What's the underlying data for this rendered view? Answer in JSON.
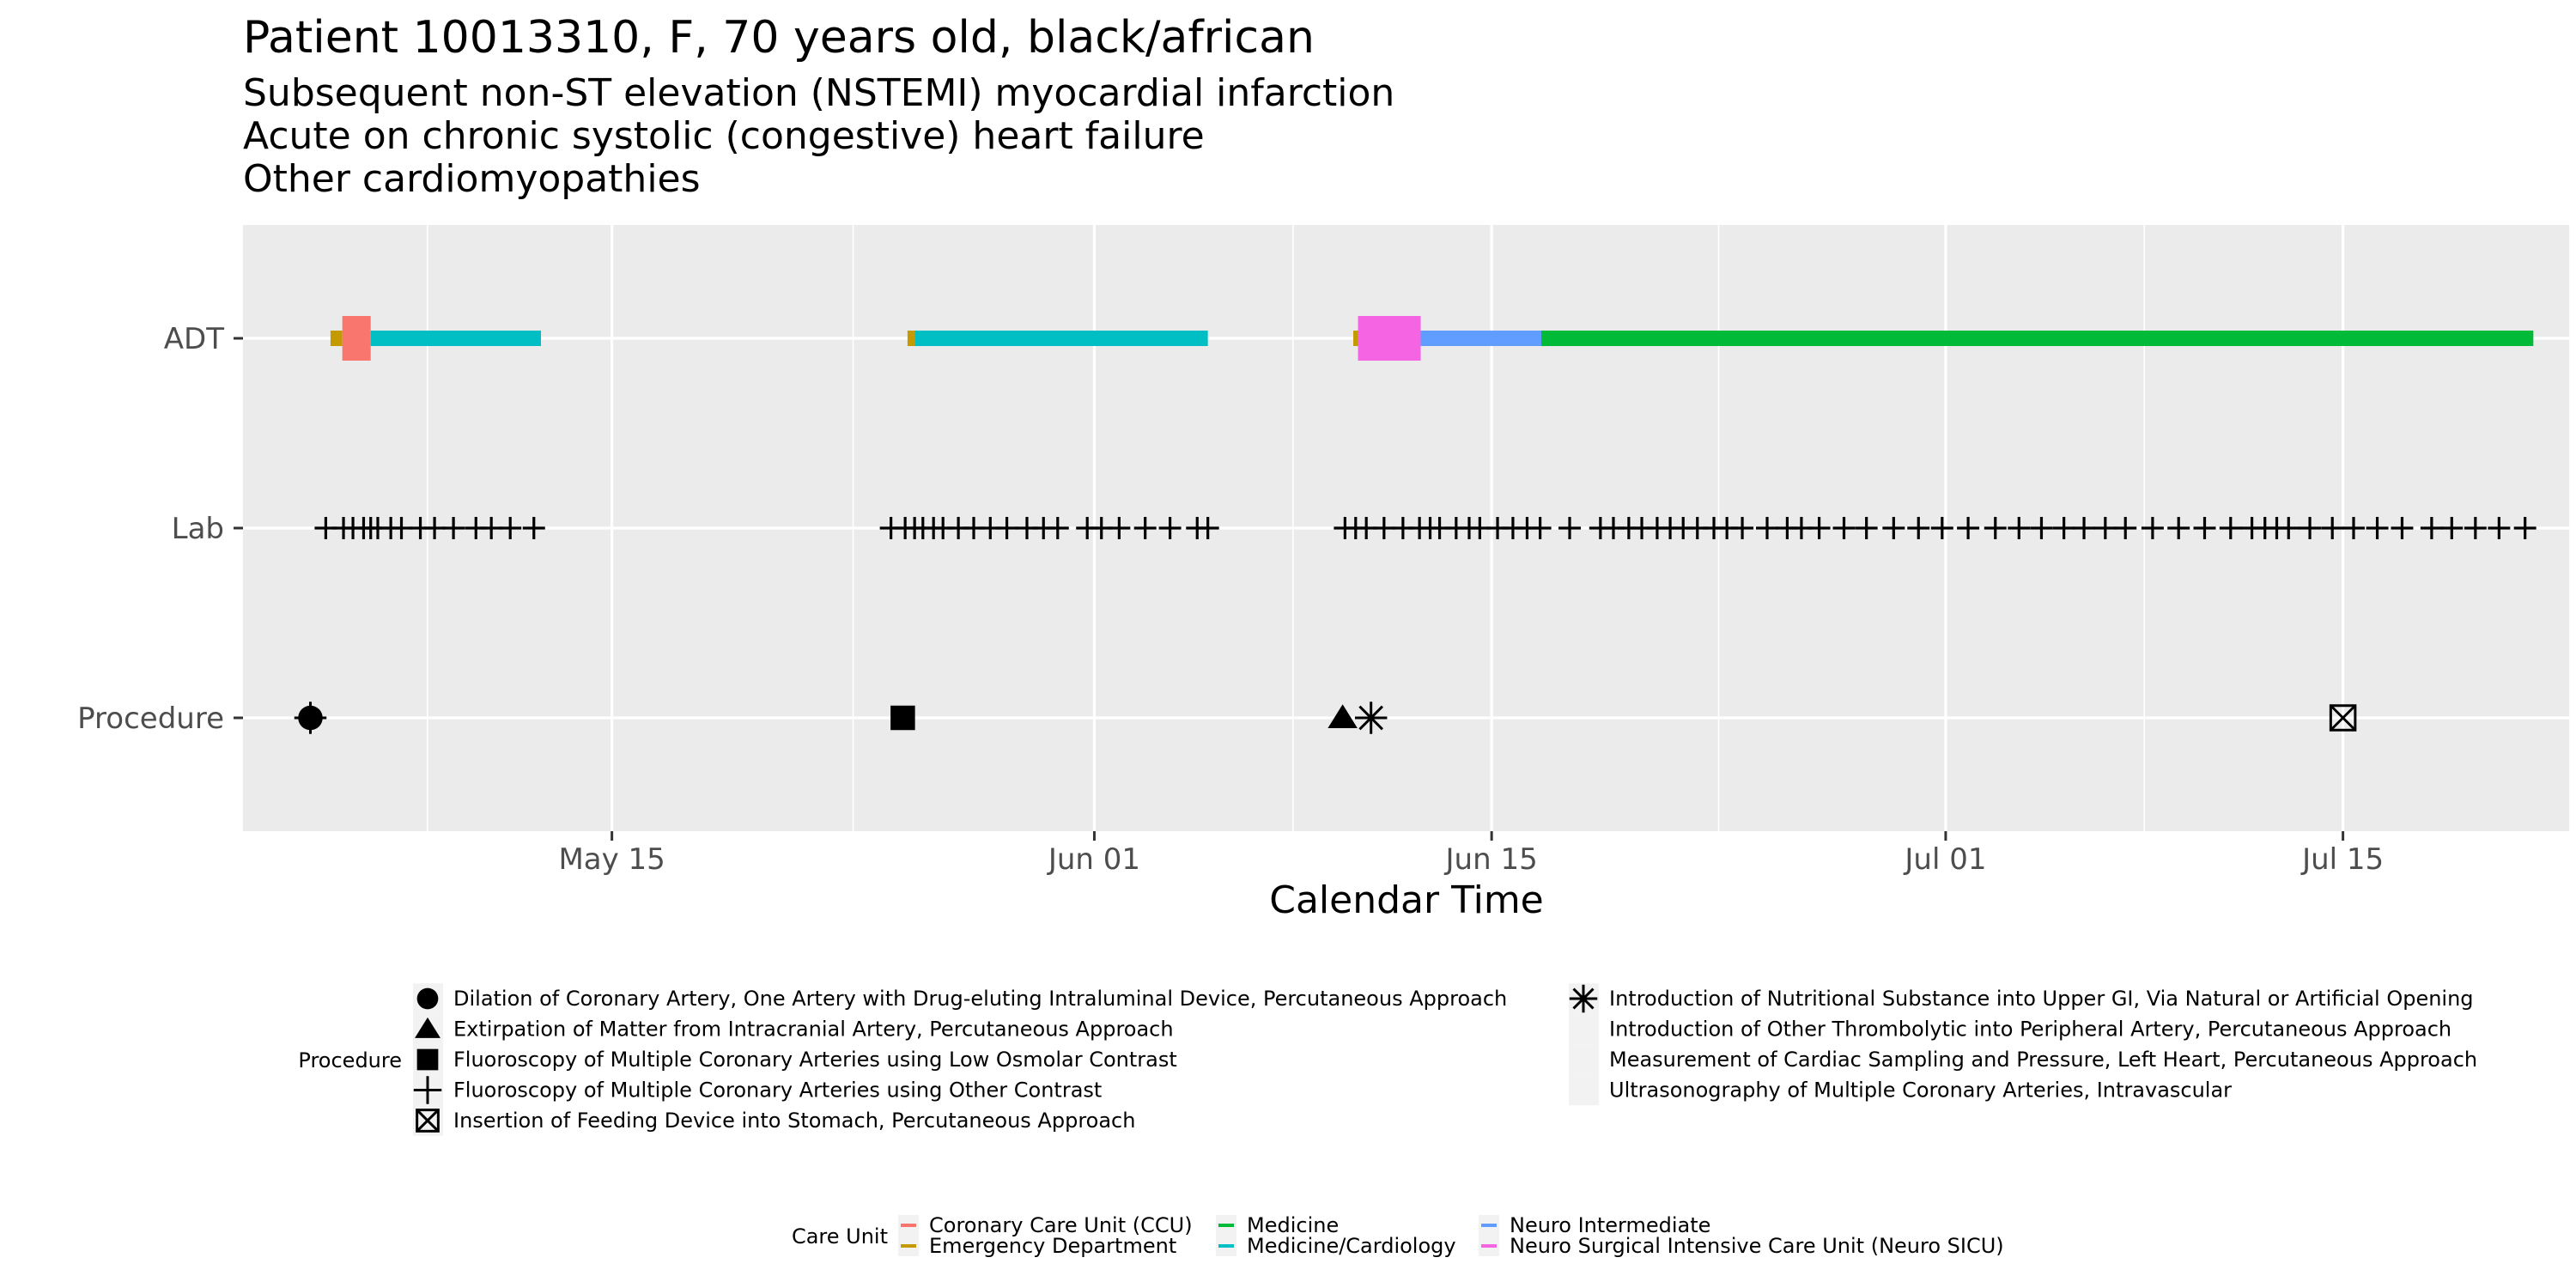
{
  "header": {
    "title": "Patient 10013310, F, 70 years old, black/african",
    "subtitles": [
      "Subsequent non-ST elevation (NSTEMI) myocardial infarction",
      "Acute on chronic systolic (congestive) heart failure",
      "Other cardiomyopathies"
    ]
  },
  "chart_data": {
    "type": "timeline",
    "title": "Patient 10013310, F, 70 years old, black/african",
    "xlabel": "Calendar Time",
    "ylabel": "",
    "x_ticks": [
      "May 15",
      "Jun 01",
      "Jun 15",
      "Jul 01",
      "Jul 15"
    ],
    "x_tick_dates": [
      "2000-05-15",
      "2000-06-01",
      "2000-06-15",
      "2000-07-01",
      "2000-07-15"
    ],
    "xlim": [
      "2000-05-02",
      "2000-07-23"
    ],
    "rows": [
      "ADT",
      "Lab",
      "Procedure"
    ],
    "grid": true,
    "adt_segments": [
      {
        "unit": "Emergency Department",
        "start": "2000-05-05 02:00",
        "end": "2000-05-05 12:00"
      },
      {
        "unit": "Coronary Care Unit (CCU)",
        "start": "2000-05-05 12:00",
        "end": "2000-05-06 12:00"
      },
      {
        "unit": "Medicine/Cardiology",
        "start": "2000-05-06 12:00",
        "end": "2000-05-12 12:00"
      },
      {
        "unit": "Emergency Department",
        "start": "2000-05-25 10:00",
        "end": "2000-05-25 16:00"
      },
      {
        "unit": "Medicine/Cardiology",
        "start": "2000-05-25 16:00",
        "end": "2000-06-05 00:00"
      },
      {
        "unit": "Emergency Department",
        "start": "2000-06-10 03:00",
        "end": "2000-06-10 07:00"
      },
      {
        "unit": "Neuro Surgical Intensive Care Unit (Neuro SICU)",
        "start": "2000-06-10 07:00",
        "end": "2000-06-12 12:00"
      },
      {
        "unit": "Neuro Intermediate",
        "start": "2000-06-12 12:00",
        "end": "2000-06-16 18:00"
      },
      {
        "unit": "Medicine",
        "start": "2000-06-16 18:00",
        "end": "2000-07-21 17:00"
      }
    ],
    "lab_times": [
      "2000-05-04 22:00",
      "2000-05-05 13:00",
      "2000-05-05 21:00",
      "2000-05-06 06:00",
      "2000-05-06 12:00",
      "2000-05-06 18:00",
      "2000-05-07 05:00",
      "2000-05-07 14:00",
      "2000-05-08 06:00",
      "2000-05-08 18:00",
      "2000-05-09 10:00",
      "2000-05-10 05:00",
      "2000-05-10 18:00",
      "2000-05-11 10:00",
      "2000-05-12 06:00",
      "2000-05-24 20:00",
      "2000-05-25 08:00",
      "2000-05-25 16:00",
      "2000-05-25 23:00",
      "2000-05-26 08:00",
      "2000-05-26 16:00",
      "2000-05-27 05:00",
      "2000-05-27 18:00",
      "2000-05-28 08:00",
      "2000-05-28 22:00",
      "2000-05-29 15:00",
      "2000-05-30 05:00",
      "2000-05-30 17:00",
      "2000-05-31 18:00",
      "2000-06-01 06:00",
      "2000-06-01 21:00",
      "2000-06-02 19:00",
      "2000-06-03 16:00",
      "2000-06-04 15:00",
      "2000-06-05 00:00",
      "2000-06-09 20:00",
      "2000-06-10 05:00",
      "2000-06-10 14:00",
      "2000-06-11 05:00",
      "2000-06-11 21:00",
      "2000-06-12 11:00",
      "2000-06-12 20:00",
      "2000-06-13 04:00",
      "2000-06-13 18:00",
      "2000-06-14 05:00",
      "2000-06-14 14:00",
      "2000-06-15 05:00",
      "2000-06-15 18:00",
      "2000-06-16 06:00",
      "2000-06-16 17:00",
      "2000-06-17 18:00",
      "2000-06-18 20:00",
      "2000-06-19 07:00",
      "2000-06-19 20:00",
      "2000-06-20 07:00",
      "2000-06-20 20:00",
      "2000-06-21 07:00",
      "2000-06-21 18:00",
      "2000-06-22 06:00",
      "2000-06-22 20:00",
      "2000-06-23 07:00",
      "2000-06-23 20:00",
      "2000-06-24 17:00",
      "2000-06-25 10:00",
      "2000-06-25 22:00",
      "2000-06-26 13:00",
      "2000-06-27 10:00",
      "2000-06-28 05:00",
      "2000-06-29 04:00",
      "2000-06-30 01:00",
      "2000-06-30 21:00",
      "2000-07-01 19:00",
      "2000-07-02 18:00",
      "2000-07-03 14:00",
      "2000-07-04 09:00",
      "2000-07-05 04:00",
      "2000-07-05 21:00",
      "2000-07-06 15:00",
      "2000-07-07 08:00",
      "2000-07-08 07:00",
      "2000-07-09 05:00",
      "2000-07-10 03:00",
      "2000-07-11 01:00",
      "2000-07-11 19:00",
      "2000-07-12 06:00",
      "2000-07-12 16:00",
      "2000-07-13 02:00",
      "2000-07-13 20:00",
      "2000-07-14 15:00",
      "2000-07-15 09:00",
      "2000-07-16 05:00",
      "2000-07-17 02:00",
      "2000-07-18 03:00",
      "2000-07-18 20:00",
      "2000-07-19 16:00",
      "2000-07-20 12:00",
      "2000-07-21 10:00"
    ],
    "procedures": [
      {
        "time": "2000-05-04 09:00",
        "name": "Dilation of Coronary Artery, One Artery with Drug-eluting Intraluminal Device, Percutaneous Approach"
      },
      {
        "time": "2000-05-04 09:00",
        "name": "Fluoroscopy of Multiple Coronary Arteries using Other Contrast"
      },
      {
        "time": "2000-05-25 06:00",
        "name": "Fluoroscopy of Multiple Coronary Arteries using Low Osmolar Contrast"
      },
      {
        "time": "2000-06-09 18:00",
        "name": "Extirpation of Matter from Intracranial Artery, Percutaneous Approach"
      },
      {
        "time": "2000-06-10 18:00",
        "name": "Introduction of Nutritional Substance into Upper GI, Via Natural or Artificial Opening"
      },
      {
        "time": "2000-07-15 00:00",
        "name": "Insertion of Feeding Device into Stomach, Percutaneous Approach"
      }
    ],
    "procedure_legend": {
      "title": "Procedure",
      "left_items": [
        {
          "shape": "circle",
          "label": "Dilation of Coronary Artery, One Artery with Drug-eluting Intraluminal Device, Percutaneous Approach"
        },
        {
          "shape": "triangle",
          "label": "Extirpation of Matter from Intracranial Artery, Percutaneous Approach"
        },
        {
          "shape": "square",
          "label": "Fluoroscopy of Multiple Coronary Arteries using Low Osmolar Contrast"
        },
        {
          "shape": "plus",
          "label": "Fluoroscopy of Multiple Coronary Arteries using Other Contrast"
        },
        {
          "shape": "boxx",
          "label": "Insertion of Feeding Device into Stomach, Percutaneous Approach"
        }
      ],
      "right_items": [
        {
          "shape": "asterisk",
          "label": "Introduction of Nutritional Substance into Upper GI, Via Natural or Artificial Opening"
        },
        {
          "shape": "none",
          "label": "Introduction of Other Thrombolytic into Peripheral Artery, Percutaneous Approach"
        },
        {
          "shape": "none",
          "label": "Measurement of Cardiac Sampling and Pressure, Left Heart, Percutaneous Approach"
        },
        {
          "shape": "none",
          "label": "Ultrasonography of Multiple Coronary Arteries, Intravascular"
        }
      ]
    },
    "care_unit_legend": {
      "title": "Care Unit",
      "items": [
        {
          "label": "Coronary Care Unit (CCU)",
          "color": "#F8766D"
        },
        {
          "label": "Emergency Department",
          "color": "#C49A00"
        },
        {
          "label": "Medicine",
          "color": "#00BA38"
        },
        {
          "label": "Medicine/Cardiology",
          "color": "#00BFC4"
        },
        {
          "label": "Neuro Intermediate",
          "color": "#619CFF"
        },
        {
          "label": "Neuro Surgical Intensive Care Unit (Neuro SICU)",
          "color": "#F564E3"
        }
      ]
    }
  }
}
